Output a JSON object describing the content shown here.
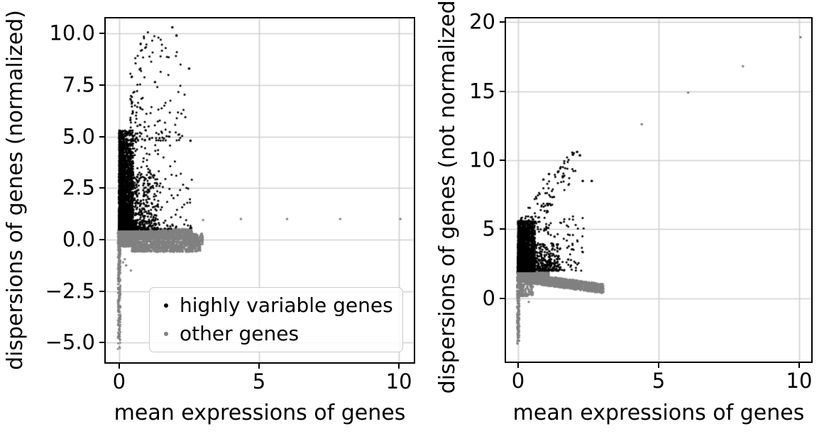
{
  "figure": {
    "background": "#ffffff",
    "grid_color": "#cfcfcf",
    "spine_color": "#000000",
    "text_color": "#000000"
  },
  "chart_data": [
    {
      "type": "scatter",
      "panel": "left",
      "title": "",
      "xlabel": "mean expressions of genes",
      "ylabel": "dispersions of genes (normalized)",
      "xlim": [
        -0.53,
        10.58
      ],
      "ylim": [
        -6.02,
        10.8
      ],
      "grid": true,
      "xticks": [
        {
          "value": 0,
          "label": "0"
        },
        {
          "value": 5,
          "label": "5"
        },
        {
          "value": 10,
          "label": "10"
        }
      ],
      "yticks": [
        {
          "value": 10,
          "label": "10.0"
        },
        {
          "value": 7.5,
          "label": "7.5"
        },
        {
          "value": 5,
          "label": "5.0"
        },
        {
          "value": 2.5,
          "label": "2.5"
        },
        {
          "value": 0,
          "label": "0.0"
        },
        {
          "value": -2.5,
          "label": "−2.5"
        },
        {
          "value": -5,
          "label": "−5.0"
        }
      ],
      "legend": {
        "position": "lower center",
        "entries": [
          {
            "label": "highly variable genes",
            "color": "#000000"
          },
          {
            "label": "other genes",
            "color": "#808080"
          }
        ]
      },
      "series": [
        {
          "name": "highly variable genes",
          "color": "#000000",
          "marker_radius": 1.5,
          "clusters": [
            {
              "n": 2600,
              "x": [
                0.0,
                0.5
              ],
              "xpow": 1.6,
              "y": [
                0.5,
                5.3
              ],
              "ypow": 2.6
            },
            {
              "n": 700,
              "x": [
                0.0,
                1.4
              ],
              "xpow": 2.2,
              "y": [
                0.5,
                3.2
              ],
              "ypow": 2.0
            },
            {
              "n": 320,
              "x": [
                0.1,
                2.6
              ],
              "xpow": 2.6,
              "y": [
                0.5,
                5.2
              ],
              "ypow": 1.7
            },
            {
              "n": 120,
              "x": [
                0.4,
                2.4
              ],
              "xpow": 1.7,
              "y": [
                4.8,
                9.0
              ],
              "ypow": 2.0
            },
            {
              "n": 25,
              "x": [
                0.6,
                2.1
              ],
              "xpow": 1.3,
              "y": [
                8.8,
                10.2
              ],
              "ypow": 1.5
            }
          ],
          "outlier_points": [
            [
              1.9,
              10.3
            ],
            [
              2.05,
              9.9
            ],
            [
              2.5,
              8.3
            ],
            [
              2.55,
              4.8
            ]
          ]
        },
        {
          "name": "other genes",
          "color": "#808080",
          "marker_radius": 1.4,
          "clusters": [
            {
              "n": 2800,
              "x": [
                0.0,
                2.6
              ],
              "xpow": 2.0,
              "y": [
                0.0,
                0.52
              ],
              "ypow": 1.0
            },
            {
              "n": 250,
              "x": [
                2.3,
                3.0
              ],
              "xpow": 1.0,
              "y": [
                -0.25,
                0.3
              ],
              "ypow": 1.0
            },
            {
              "n": 1000,
              "x": [
                0.45,
                2.9
              ],
              "xpow": 1.2,
              "y": [
                -0.6,
                -0.05
              ],
              "ypow": 1.0
            },
            {
              "n": 300,
              "x": [
                0.0,
                0.5
              ],
              "xpow": 1.5,
              "y": [
                -0.35,
                0.1
              ],
              "ypow": 1.0
            },
            {
              "n": 300,
              "x": [
                -0.05,
                0.05
              ],
              "xpow": 1.0,
              "y": [
                -5.35,
                0.5
              ],
              "ypow": 0.75
            }
          ],
          "outlier_points": [
            [
              0.14,
              -1.1
            ],
            [
              0.25,
              -1.25
            ],
            [
              0.42,
              -1.5
            ],
            [
              0.2,
              -0.95
            ],
            [
              3.0,
              0.95
            ],
            [
              4.35,
              1.0
            ],
            [
              6.0,
              1.0
            ],
            [
              7.9,
              1.0
            ],
            [
              10.05,
              1.0
            ]
          ]
        }
      ]
    },
    {
      "type": "scatter",
      "panel": "right",
      "title": "",
      "xlabel": "mean expressions of genes",
      "ylabel": "dispersions of genes (not normalized)",
      "xlim": [
        -0.48,
        10.48
      ],
      "ylim": [
        -4.67,
        20.36
      ],
      "grid": true,
      "xticks": [
        {
          "value": 0,
          "label": "0"
        },
        {
          "value": 5,
          "label": "5"
        },
        {
          "value": 10,
          "label": "10"
        }
      ],
      "yticks": [
        {
          "value": 20,
          "label": "20"
        },
        {
          "value": 15,
          "label": "15"
        },
        {
          "value": 10,
          "label": "10"
        },
        {
          "value": 5,
          "label": "5"
        },
        {
          "value": 0,
          "label": "0"
        }
      ],
      "legend": null,
      "series": [
        {
          "name": "highly variable genes",
          "color": "#000000",
          "marker_radius": 1.5,
          "clusters": [
            {
              "n": 2400,
              "x": [
                0.0,
                0.6
              ],
              "xpow": 1.6,
              "y": [
                2.0,
                5.6
              ],
              "ypow": 2.4
            },
            {
              "n": 600,
              "x": [
                0.0,
                1.5
              ],
              "xpow": 2.2,
              "y": [
                2.0,
                4.0
              ],
              "ypow": 1.8
            },
            {
              "n": 300,
              "x": [
                0.1,
                2.4
              ],
              "xpow": 2.4,
              "y": [
                2.0,
                6.0
              ],
              "ypow": 1.6
            },
            {
              "n": 90,
              "x": [
                0.3,
                2.05
              ],
              "xpow": 1.2,
              "trend": {
                "slope": 2.6,
                "intercept": 4.6,
                "noise": 1.1
              }
            }
          ],
          "outlier_points": [
            [
              2.1,
              10.6
            ],
            [
              2.2,
              10.35
            ],
            [
              1.95,
              10.4
            ],
            [
              2.3,
              8.5
            ],
            [
              2.62,
              8.5
            ],
            [
              0.9,
              8.6
            ],
            [
              1.1,
              9.0
            ]
          ]
        },
        {
          "name": "other genes",
          "color": "#808080",
          "marker_radius": 1.4,
          "clusters": [
            {
              "n": 2400,
              "x": [
                0.0,
                3.05
              ],
              "xpow": 1.8,
              "trend": {
                "slope": -0.28,
                "intercept": 1.55,
                "noise": 0.35
              }
            },
            {
              "n": 500,
              "x": [
                0.0,
                1.1
              ],
              "xpow": 1.9,
              "y": [
                1.5,
                2.0
              ],
              "ypow": 1.0
            },
            {
              "n": 130,
              "x": [
                0.07,
                0.55
              ],
              "xpow": 1.4,
              "y": [
                0.15,
                1.1
              ],
              "ypow": 1.2
            },
            {
              "n": 280,
              "x": [
                -0.04,
                0.05
              ],
              "xpow": 1.0,
              "y": [
                -3.5,
                2.4
              ],
              "ypow": 0.7
            }
          ],
          "outlier_points": [
            [
              0.38,
              -0.25
            ],
            [
              4.4,
              12.6
            ],
            [
              6.05,
              14.9
            ],
            [
              8.0,
              16.8
            ],
            [
              10.05,
              18.9
            ]
          ]
        }
      ]
    }
  ]
}
